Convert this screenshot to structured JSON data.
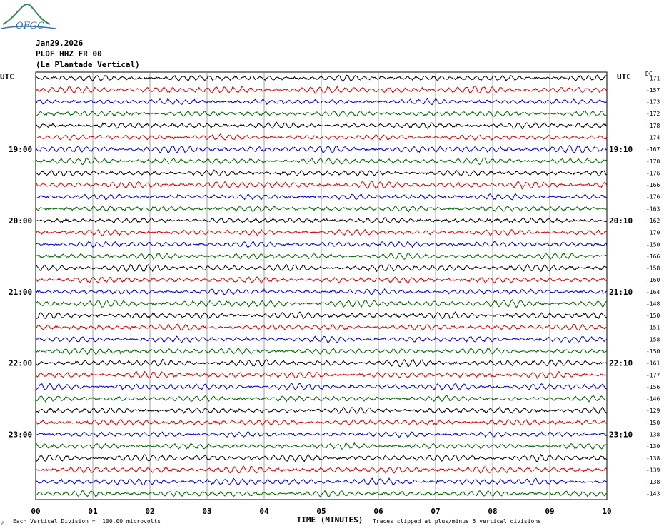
{
  "header": {
    "date": "Jan29,2026",
    "station": "PLDF HHZ FR 00",
    "site": "(La Plantade Vertical)",
    "logo_text": "OFGC"
  },
  "axes": {
    "left_label": "UTC",
    "right_label": "UTC",
    "dc_label": "DC",
    "xlabel": "TIME (MINUTES)"
  },
  "footer": {
    "scale_note": "Each Vertical Division =  100.00 microvolts",
    "clip_note": "Traces clipped at plus/minus 5 vertical divisions",
    "corner_mark": "ﾊ"
  },
  "colors": {
    "trace_cycle": [
      "#000000",
      "#d40000",
      "#0000c8",
      "#006400"
    ],
    "grid": "#808080"
  },
  "chart_data": {
    "type": "line",
    "title": "",
    "xlabel": "TIME (MINUTES)",
    "ylabel": "UTC",
    "xlim": [
      0,
      10
    ],
    "x_ticks": [
      "00",
      "01",
      "02",
      "03",
      "04",
      "05",
      "06",
      "07",
      "08",
      "09",
      "10"
    ],
    "rows": 36,
    "left_hour_labels": [
      {
        "row": 6,
        "text": "19:00"
      },
      {
        "row": 12,
        "text": "20:00"
      },
      {
        "row": 18,
        "text": "21:00"
      },
      {
        "row": 24,
        "text": "22:00"
      },
      {
        "row": 30,
        "text": "23:00"
      }
    ],
    "right_hour_labels": [
      {
        "row": 6,
        "text": "19:10"
      },
      {
        "row": 12,
        "text": "20:10"
      },
      {
        "row": 18,
        "text": "21:10"
      },
      {
        "row": 24,
        "text": "22:10"
      },
      {
        "row": 30,
        "text": "23:10"
      }
    ],
    "dc_offsets": [
      "-171",
      "-157",
      "-173",
      "-172",
      "-178",
      "-174",
      "-167",
      "-170",
      "-176",
      "-166",
      "-176",
      "-163",
      "-162",
      "-170",
      "-150",
      "-166",
      "-158",
      "-160",
      "-164",
      "-148",
      "-150",
      "-151",
      "-158",
      "-150",
      "-161",
      "-177",
      "-156",
      "-146",
      "-129",
      "-150",
      "-138",
      "-130",
      "-138",
      "-139",
      "-138",
      "-143"
    ],
    "series": "36 seismic traces (helicorder), 10-minute rows, clipped at plus/minus 5 vertical divisions"
  }
}
